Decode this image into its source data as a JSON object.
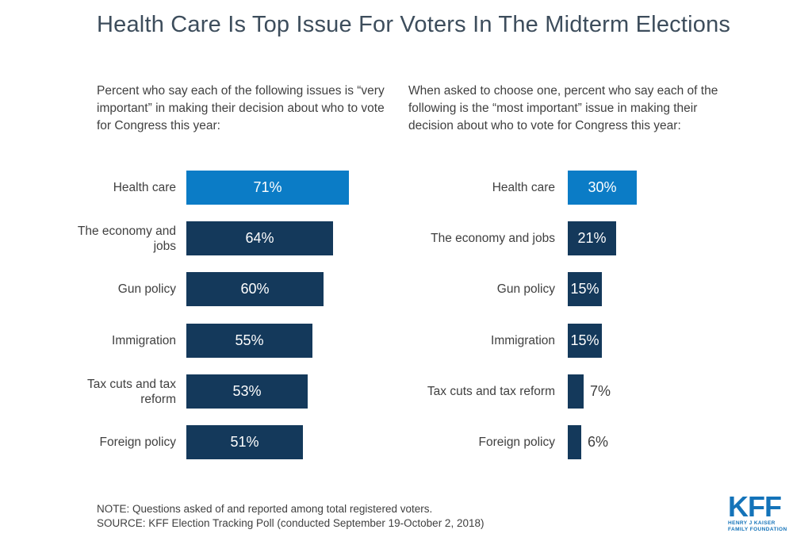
{
  "title": "Health Care Is Top Issue For Voters In The Midterm Elections",
  "footer": {
    "note": "NOTE: Questions asked of and reported among total registered voters.",
    "source": "SOURCE: KFF Election Tracking Poll (conducted September 19-October 2, 2018)"
  },
  "logo": {
    "text": "KFF",
    "line1": "HENRY J KAISER",
    "line2": "FAMILY FOUNDATION"
  },
  "colors": {
    "highlight_blue": "#0b7cc6",
    "navy": "#14395b",
    "title_text": "#3d4d5c",
    "body_text": "#404040",
    "logo_blue": "#1473b9"
  },
  "chart_data": [
    {
      "type": "bar",
      "orientation": "horizontal",
      "title": "Percent who say each of the following issues is “very important” in making their decision about who to vote for Congress this year:",
      "categories": [
        "Health care",
        "The economy and jobs",
        "Gun policy",
        "Immigration",
        "Tax cuts and tax reform",
        "Foreign policy"
      ],
      "values": [
        71,
        64,
        60,
        55,
        53,
        51
      ],
      "value_labels": [
        "71%",
        "64%",
        "60%",
        "55%",
        "53%",
        "51%"
      ],
      "xlim": [
        0,
        100
      ],
      "grid": false,
      "legend": "none",
      "highlight_index": 0,
      "bar_color_default": "#14395b",
      "bar_color_highlight": "#0b7cc6"
    },
    {
      "type": "bar",
      "orientation": "horizontal",
      "title": "When asked to choose one, percent who say each of the following is the “most important” issue in making their decision about who to vote for Congress this year:",
      "categories": [
        "Health care",
        "The economy and jobs",
        "Gun policy",
        "Immigration",
        "Tax cuts and tax reform",
        "Foreign policy"
      ],
      "values": [
        30,
        21,
        15,
        15,
        7,
        6
      ],
      "value_labels": [
        "30%",
        "21%",
        "15%",
        "15%",
        "7%",
        "6%"
      ],
      "xlim": [
        0,
        100
      ],
      "grid": false,
      "legend": "none",
      "highlight_index": 0,
      "bar_color_default": "#14395b",
      "bar_color_highlight": "#0b7cc6"
    }
  ]
}
